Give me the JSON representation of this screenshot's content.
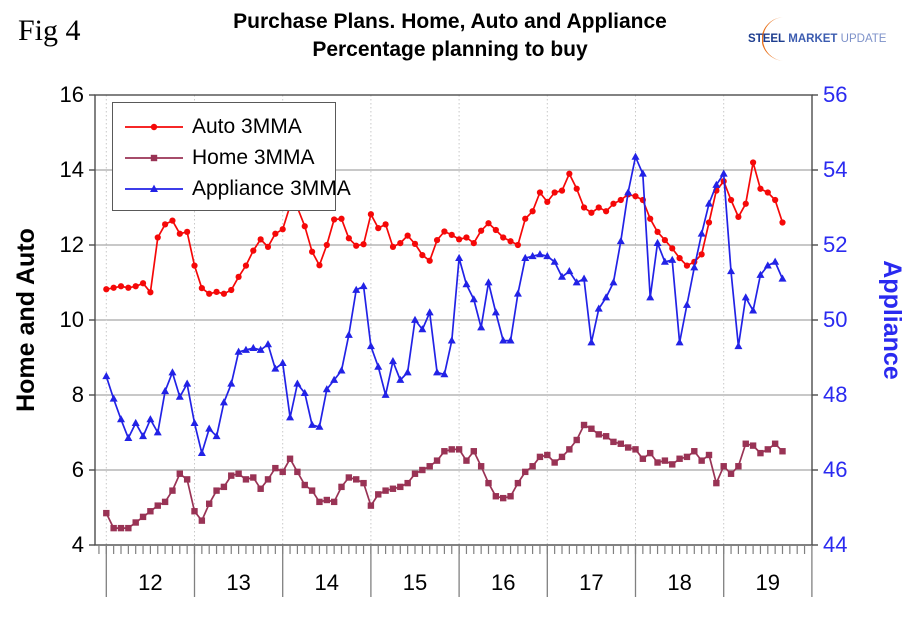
{
  "fig_label": "Fig 4",
  "title": {
    "line1": "Purchase Plans. Home, Auto and Appliance",
    "line2": "Percentage planning to buy"
  },
  "logo": {
    "steel": "STEEL",
    "market": "MARKET",
    "update": "UPDATE",
    "swoosh_color": "#e8701a"
  },
  "chart_data": {
    "type": "line",
    "title": "Purchase Plans. Home, Auto and Appliance — Percentage planning to buy",
    "x_start_month": "2012-01",
    "x_months_per_year": 12,
    "x_tick_labels": [
      "12",
      "13",
      "14",
      "15",
      "16",
      "17",
      "18",
      "19"
    ],
    "left_axis": {
      "label": "Home and Auto",
      "min": 4,
      "max": 16,
      "step": 2,
      "ticks": [
        16,
        14,
        12,
        10,
        8,
        6,
        4
      ],
      "color": "#000000"
    },
    "right_axis": {
      "label": "Appliance",
      "min": 44,
      "max": 56,
      "step": 2,
      "ticks": [
        56,
        54,
        52,
        50,
        48,
        46,
        44
      ],
      "color": "#2a2af0"
    },
    "grid": {
      "horizontal": true,
      "vertical_year_dotted": true,
      "h_color": "#a6a6a6",
      "v_color": "#c8c8c8"
    },
    "legend_position": "top-left-inside",
    "series": [
      {
        "name": "Auto 3MMA",
        "axis": "left",
        "color": "#f50808",
        "marker": "circle",
        "values": [
          10.82,
          10.86,
          10.9,
          10.86,
          10.9,
          10.98,
          10.74,
          12.2,
          12.55,
          12.65,
          12.3,
          12.35,
          11.45,
          10.85,
          10.7,
          10.75,
          10.7,
          10.8,
          11.15,
          11.45,
          11.85,
          12.15,
          11.95,
          12.3,
          12.42,
          13.05,
          13.0,
          12.5,
          11.82,
          11.46,
          12.0,
          12.68,
          12.7,
          12.18,
          11.98,
          12.02,
          12.82,
          12.45,
          12.55,
          11.95,
          12.05,
          12.25,
          12.03,
          11.73,
          11.58,
          12.13,
          12.36,
          12.27,
          12.15,
          12.2,
          12.05,
          12.38,
          12.58,
          12.4,
          12.2,
          12.1,
          12.0,
          12.7,
          12.9,
          13.4,
          13.15,
          13.4,
          13.45,
          13.9,
          13.5,
          13.0,
          12.86,
          13.0,
          12.9,
          13.1,
          13.2,
          13.35,
          13.3,
          13.2,
          12.7,
          12.35,
          12.13,
          11.91,
          11.65,
          11.45,
          11.55,
          11.75,
          12.6,
          13.45,
          13.7,
          13.2,
          12.75,
          13.1,
          14.2,
          13.5,
          13.4,
          13.2,
          12.6
        ]
      },
      {
        "name": "Home 3MMA",
        "axis": "left",
        "color": "#993355",
        "marker": "square",
        "values": [
          4.85,
          4.45,
          4.45,
          4.45,
          4.6,
          4.75,
          4.9,
          5.05,
          5.15,
          5.45,
          5.9,
          5.75,
          4.9,
          4.65,
          5.1,
          5.45,
          5.55,
          5.85,
          5.9,
          5.75,
          5.8,
          5.5,
          5.75,
          6.05,
          5.95,
          6.3,
          5.95,
          5.6,
          5.45,
          5.15,
          5.2,
          5.15,
          5.55,
          5.8,
          5.75,
          5.65,
          5.05,
          5.35,
          5.45,
          5.5,
          5.55,
          5.65,
          5.9,
          6.0,
          6.1,
          6.25,
          6.5,
          6.55,
          6.55,
          6.25,
          6.5,
          6.1,
          5.65,
          5.3,
          5.25,
          5.3,
          5.65,
          5.95,
          6.1,
          6.35,
          6.4,
          6.2,
          6.35,
          6.55,
          6.8,
          7.2,
          7.1,
          6.95,
          6.9,
          6.75,
          6.7,
          6.6,
          6.55,
          6.3,
          6.45,
          6.2,
          6.25,
          6.15,
          6.3,
          6.35,
          6.5,
          6.25,
          6.4,
          5.65,
          6.1,
          5.9,
          6.1,
          6.7,
          6.65,
          6.45,
          6.55,
          6.7,
          6.5
        ]
      },
      {
        "name": "Appliance 3MMA",
        "axis": "right",
        "color": "#2222e6",
        "marker": "triangle",
        "values": [
          48.5,
          47.9,
          47.35,
          46.85,
          47.25,
          46.9,
          47.35,
          47.0,
          48.1,
          48.6,
          47.95,
          48.3,
          47.25,
          46.45,
          47.1,
          46.9,
          47.8,
          48.3,
          49.15,
          49.2,
          49.25,
          49.2,
          49.35,
          48.7,
          48.85,
          47.4,
          48.3,
          48.05,
          47.2,
          47.15,
          48.15,
          48.4,
          48.65,
          49.6,
          50.8,
          50.9,
          49.3,
          48.75,
          48.0,
          48.9,
          48.4,
          48.6,
          50.0,
          49.75,
          50.2,
          48.6,
          48.55,
          49.45,
          51.65,
          50.95,
          50.55,
          49.8,
          51.0,
          50.2,
          49.45,
          49.45,
          50.7,
          51.65,
          51.7,
          51.75,
          51.7,
          51.55,
          51.15,
          51.3,
          51.0,
          51.1,
          49.4,
          50.3,
          50.6,
          51.0,
          52.1,
          53.4,
          54.35,
          53.9,
          50.6,
          52.05,
          51.55,
          51.6,
          49.4,
          50.4,
          51.4,
          52.3,
          53.1,
          53.6,
          53.9,
          51.3,
          49.3,
          50.6,
          50.25,
          51.2,
          51.45,
          51.55,
          51.1
        ]
      }
    ]
  }
}
